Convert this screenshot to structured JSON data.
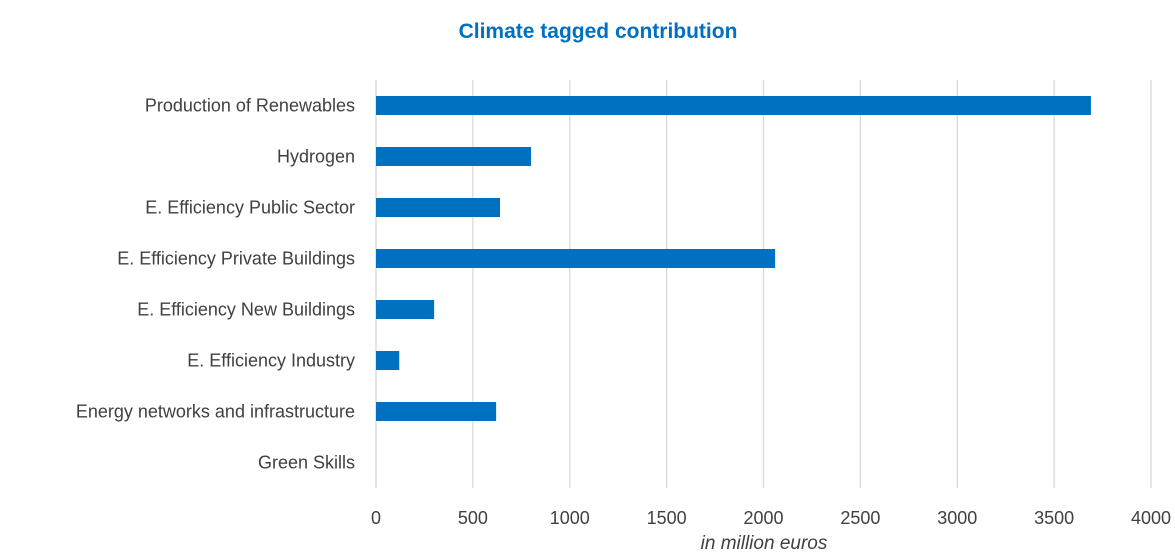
{
  "chart_data": {
    "type": "bar",
    "orientation": "horizontal",
    "title": "Climate tagged contribution",
    "xlabel": "in million euros",
    "ylabel": "",
    "categories": [
      "Production of Renewables",
      "Hydrogen",
      "E. Efficiency Public Sector",
      "E. Efficiency Private Buildings",
      "E. Efficiency New Buildings",
      "E. Efficiency Industry",
      "Energy networks and infrastructure",
      "Green Skills"
    ],
    "values": [
      3690,
      800,
      640,
      2060,
      300,
      120,
      620,
      0
    ],
    "xlim": [
      0,
      4000
    ],
    "ticks": [
      "0",
      "500",
      "1000",
      "1500",
      "2000",
      "2500",
      "3000",
      "3500",
      "4000"
    ],
    "grid": "vertical",
    "legend": "none",
    "bar_color": "#0070c0",
    "title_color": "#0070c0"
  }
}
